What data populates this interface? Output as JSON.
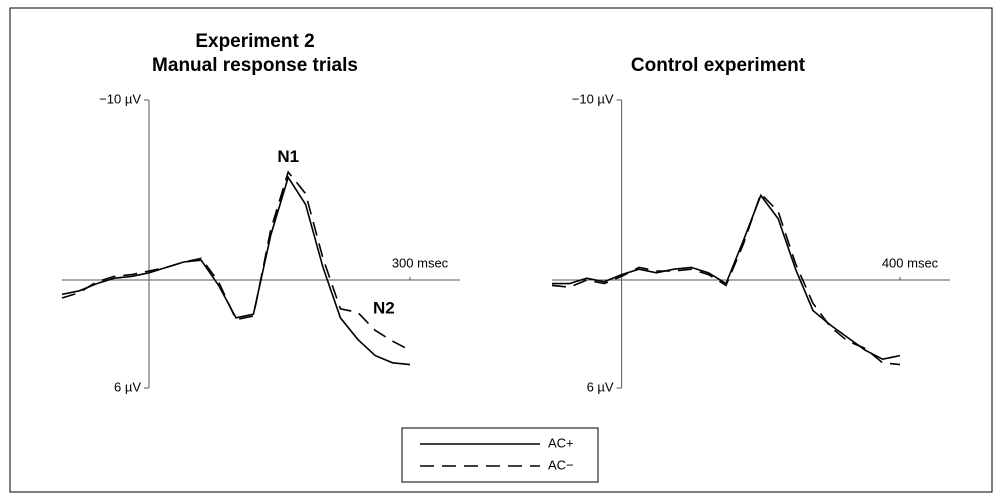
{
  "chart_data": [
    {
      "type": "line",
      "title": "Experiment 2",
      "subtitle": "Manual response trials",
      "x": [
        -100,
        -80,
        -60,
        -40,
        -20,
        0,
        20,
        40,
        60,
        80,
        100,
        120,
        140,
        160,
        180,
        200,
        220,
        240,
        260,
        280,
        300
      ],
      "series": [
        {
          "name": "AC+",
          "color": "#000000",
          "style": "solid",
          "values": [
            0.8,
            0.6,
            0.2,
            -0.1,
            -0.2,
            -0.4,
            -0.7,
            -1.0,
            -1.1,
            0.3,
            2.1,
            1.9,
            -2.5,
            -5.7,
            -4.2,
            -0.7,
            2.1,
            3.3,
            4.2,
            4.6,
            4.7
          ]
        },
        {
          "name": "AC−",
          "color": "#000000",
          "style": "dashed",
          "values": [
            1.0,
            0.7,
            0.1,
            -0.2,
            -0.3,
            -0.5,
            -0.7,
            -1.0,
            -1.2,
            0.1,
            2.2,
            2.0,
            -2.8,
            -6.0,
            -4.8,
            -1.2,
            1.6,
            1.8,
            2.8,
            3.4,
            3.9
          ]
        }
      ],
      "xlim": [
        -100,
        300
      ],
      "xticks": [
        {
          "value": 300,
          "label": "300 msec"
        }
      ],
      "ylim": [
        -10,
        6
      ],
      "y_inverted": true,
      "yticks": [
        {
          "value": -10,
          "label": "−10 µV"
        },
        {
          "value": 6,
          "label": "6 µV"
        }
      ],
      "annotations": [
        {
          "text": "N1",
          "x": 160,
          "y": -6.8
        },
        {
          "text": "N2",
          "x": 270,
          "y": 1.6
        }
      ]
    },
    {
      "type": "line",
      "title": "Control experiment",
      "x": [
        -100,
        -75,
        -50,
        -25,
        0,
        25,
        50,
        75,
        100,
        125,
        150,
        175,
        200,
        225,
        250,
        275,
        300,
        325,
        350,
        375,
        400
      ],
      "series": [
        {
          "name": "AC+",
          "color": "#000000",
          "style": "solid",
          "values": [
            0.2,
            0.2,
            -0.1,
            0.1,
            -0.3,
            -0.6,
            -0.4,
            -0.6,
            -0.7,
            -0.4,
            0.2,
            -2.2,
            -4.7,
            -3.4,
            -0.6,
            1.7,
            2.5,
            3.2,
            3.9,
            4.4,
            4.2
          ]
        },
        {
          "name": "AC−",
          "color": "#000000",
          "style": "dashed",
          "values": [
            0.3,
            0.4,
            0.0,
            0.2,
            -0.2,
            -0.7,
            -0.5,
            -0.5,
            -0.6,
            -0.3,
            0.3,
            -2.0,
            -4.8,
            -3.8,
            -0.9,
            1.3,
            2.6,
            3.4,
            3.8,
            4.6,
            4.7
          ]
        }
      ],
      "xlim": [
        -100,
        400
      ],
      "xticks": [
        {
          "value": 400,
          "label": "400 msec"
        }
      ],
      "ylim": [
        -10,
        6
      ],
      "y_inverted": true,
      "yticks": [
        {
          "value": -10,
          "label": "−10 µV"
        },
        {
          "value": 6,
          "label": "6 µV"
        }
      ]
    }
  ]
}
